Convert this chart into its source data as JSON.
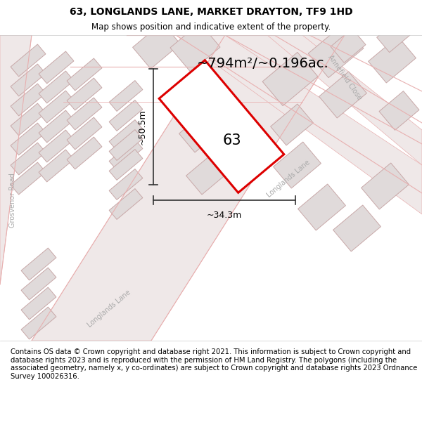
{
  "title": "63, LONGLANDS LANE, MARKET DRAYTON, TF9 1HD",
  "subtitle": "Map shows position and indicative extent of the property.",
  "footer": "Contains OS data © Crown copyright and database right 2021. This information is subject to Crown copyright and database rights 2023 and is reproduced with the permission of HM Land Registry. The polygons (including the associated geometry, namely x, y co-ordinates) are subject to Crown copyright and database rights 2023 Ordnance Survey 100026316.",
  "area_label": "~794m²/~0.196ac.",
  "plot_number": "63",
  "dim_width": "~34.3m",
  "dim_height": "~50.5m",
  "map_bg": "#f9f6f6",
  "road_line_color": "#e8b0b0",
  "road_fill_color": "#efe8e8",
  "building_fill": "#e0dada",
  "building_outline": "#c8a8a8",
  "plot_outline_color": "#dd0000",
  "plot_fill": "#ffffff",
  "dim_line_color": "#333333",
  "street_label_color": "#aaaaaa",
  "title_fontsize": 10,
  "subtitle_fontsize": 8.5,
  "footer_fontsize": 7.2
}
